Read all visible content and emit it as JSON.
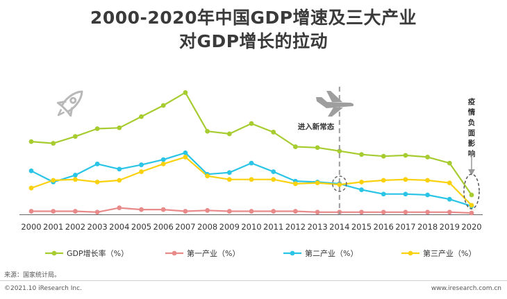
{
  "title_line1": "2000-2020年中国GDP增速及三大产业",
  "title_line2": "对GDP增长的拉动",
  "chart_data": {
    "type": "line",
    "title": "2000-2020年中国GDP增速及三大产业对GDP增长的拉动",
    "xlabel": "",
    "ylabel": "%",
    "ylim": [
      0,
      15
    ],
    "categories": [
      "2000",
      "2001",
      "2002",
      "2003",
      "2004",
      "2005",
      "2006",
      "2007",
      "2008",
      "2009",
      "2010",
      "2011",
      "2012",
      "2013",
      "2014",
      "2015",
      "2016",
      "2017",
      "2018",
      "2019",
      "2020"
    ],
    "series": [
      {
        "name": "GDP增长率（%）",
        "color": "#a6cc30",
        "values": [
          8.5,
          8.3,
          9.1,
          10.0,
          10.1,
          11.4,
          12.7,
          14.2,
          9.7,
          9.4,
          10.6,
          9.6,
          7.9,
          7.8,
          7.4,
          7.0,
          6.8,
          6.9,
          6.7,
          6.0,
          2.3
        ]
      },
      {
        "name": "第一产业（%）",
        "color": "#e98a8a",
        "values": [
          0.4,
          0.4,
          0.4,
          0.3,
          0.8,
          0.6,
          0.6,
          0.4,
          0.5,
          0.4,
          0.4,
          0.4,
          0.4,
          0.3,
          0.3,
          0.3,
          0.3,
          0.3,
          0.3,
          0.3,
          0.2
        ]
      },
      {
        "name": "第二产业（%）",
        "color": "#29c4e6",
        "values": [
          5.1,
          3.8,
          4.6,
          5.9,
          5.3,
          5.8,
          6.4,
          7.2,
          4.7,
          4.9,
          6.0,
          5.0,
          3.9,
          3.8,
          3.6,
          2.9,
          2.4,
          2.4,
          2.3,
          1.8,
          1.0
        ]
      },
      {
        "name": "第三产业（%）",
        "color": "#fad10e",
        "values": [
          3.1,
          4.0,
          4.1,
          3.8,
          4.0,
          5.0,
          5.9,
          6.7,
          4.5,
          4.1,
          4.1,
          4.1,
          3.6,
          3.7,
          3.5,
          3.8,
          4.0,
          4.1,
          4.0,
          3.7,
          1.1
        ]
      }
    ],
    "annotations": {
      "new_normal": {
        "label": "进入新常态",
        "year": "2014"
      },
      "pandemic": {
        "label": "疫情负面影响",
        "year": "2020"
      }
    },
    "legend_position": "bottom"
  },
  "source": "来源：国家统计局。",
  "copyright": "©2021.10 iResearch Inc.",
  "website": "www.iresearch.com.cn",
  "icons": {
    "rocket": "rocket-icon",
    "plane": "airplane-icon"
  }
}
